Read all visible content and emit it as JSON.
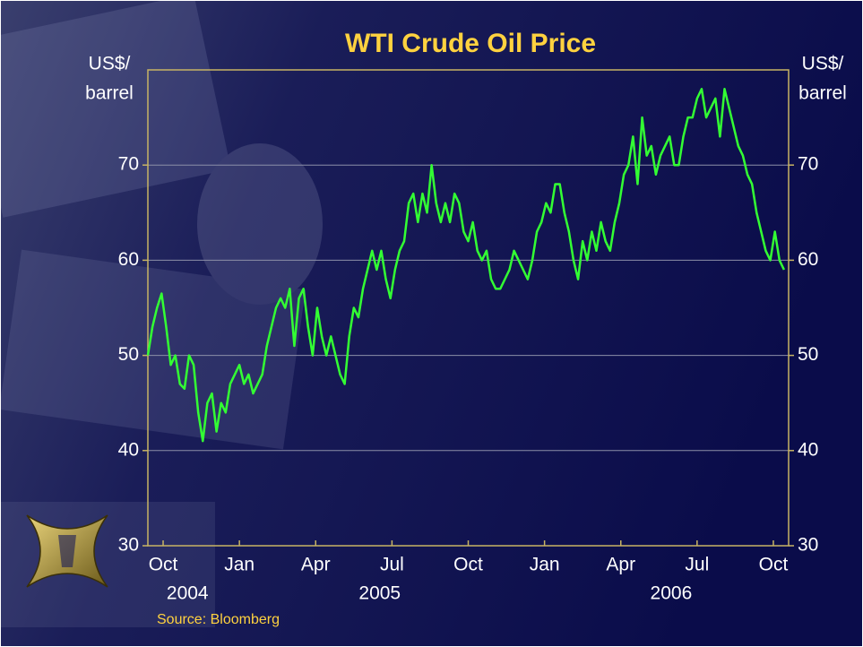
{
  "chart_data": {
    "type": "line",
    "title": "WTI Crude Oil Price",
    "ylabel_lines": [
      "US$/",
      "barrel"
    ],
    "y2label_lines": [
      "US$/",
      "barrel"
    ],
    "note": "Source: Bloomberg",
    "xlim": [
      2004.7,
      2006.8
    ],
    "xticks": [
      {
        "value": 2004.75,
        "label": "Oct"
      },
      {
        "value": 2005.0,
        "label": "Jan"
      },
      {
        "value": 2005.25,
        "label": "Apr"
      },
      {
        "value": 2005.5,
        "label": "Jul"
      },
      {
        "value": 2005.75,
        "label": "Oct"
      },
      {
        "value": 2006.0,
        "label": "Jan"
      },
      {
        "value": 2006.25,
        "label": "Apr"
      },
      {
        "value": 2006.5,
        "label": "Jul"
      },
      {
        "value": 2006.75,
        "label": "Oct"
      }
    ],
    "year_labels": [
      {
        "value": 2004.83,
        "label": "2004"
      },
      {
        "value": 2005.46,
        "label": "2005"
      },
      {
        "value": 2006.415,
        "label": "2006"
      }
    ],
    "ylim": [
      30,
      80
    ],
    "yticks": [
      30,
      40,
      50,
      60,
      70
    ],
    "y2lim": [
      30,
      80
    ],
    "y2ticks": [
      30,
      40,
      50,
      60,
      70
    ],
    "grid": true,
    "x": [
      2004.7,
      2004.715,
      2004.73,
      2004.745,
      2004.76,
      2004.775,
      2004.79,
      2004.805,
      2004.82,
      2004.835,
      2004.85,
      2004.865,
      2004.88,
      2004.895,
      2004.91,
      2004.925,
      2004.94,
      2004.955,
      2004.97,
      2004.985,
      2005,
      2005.015,
      2005.03,
      2005.045,
      2005.06,
      2005.075,
      2005.09,
      2005.105,
      2005.12,
      2005.135,
      2005.15,
      2005.165,
      2005.18,
      2005.195,
      2005.21,
      2005.225,
      2005.24,
      2005.255,
      2005.27,
      2005.285,
      2005.3,
      2005.315,
      2005.33,
      2005.345,
      2005.36,
      2005.375,
      2005.39,
      2005.405,
      2005.42,
      2005.435,
      2005.45,
      2005.465,
      2005.48,
      2005.495,
      2005.51,
      2005.525,
      2005.54,
      2005.555,
      2005.57,
      2005.585,
      2005.6,
      2005.615,
      2005.63,
      2005.645,
      2005.66,
      2005.675,
      2005.69,
      2005.705,
      2005.72,
      2005.735,
      2005.75,
      2005.765,
      2005.78,
      2005.795,
      2005.81,
      2005.825,
      2005.84,
      2005.855,
      2005.87,
      2005.885,
      2005.9,
      2005.915,
      2005.93,
      2005.945,
      2005.96,
      2005.975,
      2005.99,
      2006.005,
      2006.02,
      2006.035,
      2006.05,
      2006.065,
      2006.08,
      2006.095,
      2006.11,
      2006.125,
      2006.14,
      2006.155,
      2006.17,
      2006.185,
      2006.2,
      2006.215,
      2006.23,
      2006.245,
      2006.26,
      2006.275,
      2006.29,
      2006.305,
      2006.32,
      2006.335,
      2006.35,
      2006.365,
      2006.38,
      2006.395,
      2006.41,
      2006.425,
      2006.44,
      2006.455,
      2006.47,
      2006.485,
      2006.5,
      2006.515,
      2006.53,
      2006.545,
      2006.56,
      2006.575,
      2006.59,
      2006.605,
      2006.62,
      2006.635,
      2006.65,
      2006.665,
      2006.68,
      2006.695,
      2006.71,
      2006.725,
      2006.74,
      2006.755,
      2006.77,
      2006.785
    ],
    "series": [
      {
        "color": "#33ff33",
        "values": [
          50,
          53,
          55,
          56.5,
          53,
          49,
          50,
          47,
          46.5,
          50,
          49,
          44,
          41,
          45,
          46,
          42,
          45,
          44,
          47,
          48,
          49,
          47,
          48,
          46,
          47,
          48,
          51,
          53,
          55,
          56,
          55,
          57,
          51,
          56,
          57,
          53,
          50,
          55,
          52,
          50,
          52,
          50,
          48,
          47,
          52,
          55,
          54,
          57,
          59,
          61,
          59,
          61,
          58,
          56,
          59,
          61,
          62,
          66,
          67,
          64,
          67,
          65,
          70,
          66,
          64,
          66,
          64,
          67,
          66,
          63,
          62,
          64,
          61,
          60,
          61,
          58,
          57,
          57,
          58,
          59,
          61,
          60,
          59,
          58,
          60,
          63,
          64,
          66,
          65,
          68,
          68,
          65,
          63,
          60,
          58,
          62,
          60,
          63,
          61,
          64,
          62,
          61,
          64,
          66,
          69,
          70,
          73,
          68,
          75,
          71,
          72,
          69,
          71,
          72,
          73,
          70,
          70,
          73,
          75,
          75,
          77,
          78,
          75,
          76,
          77,
          73,
          78,
          76,
          74,
          72,
          71,
          69,
          68,
          65,
          63,
          61,
          60,
          63,
          60,
          59
        ]
      }
    ]
  }
}
